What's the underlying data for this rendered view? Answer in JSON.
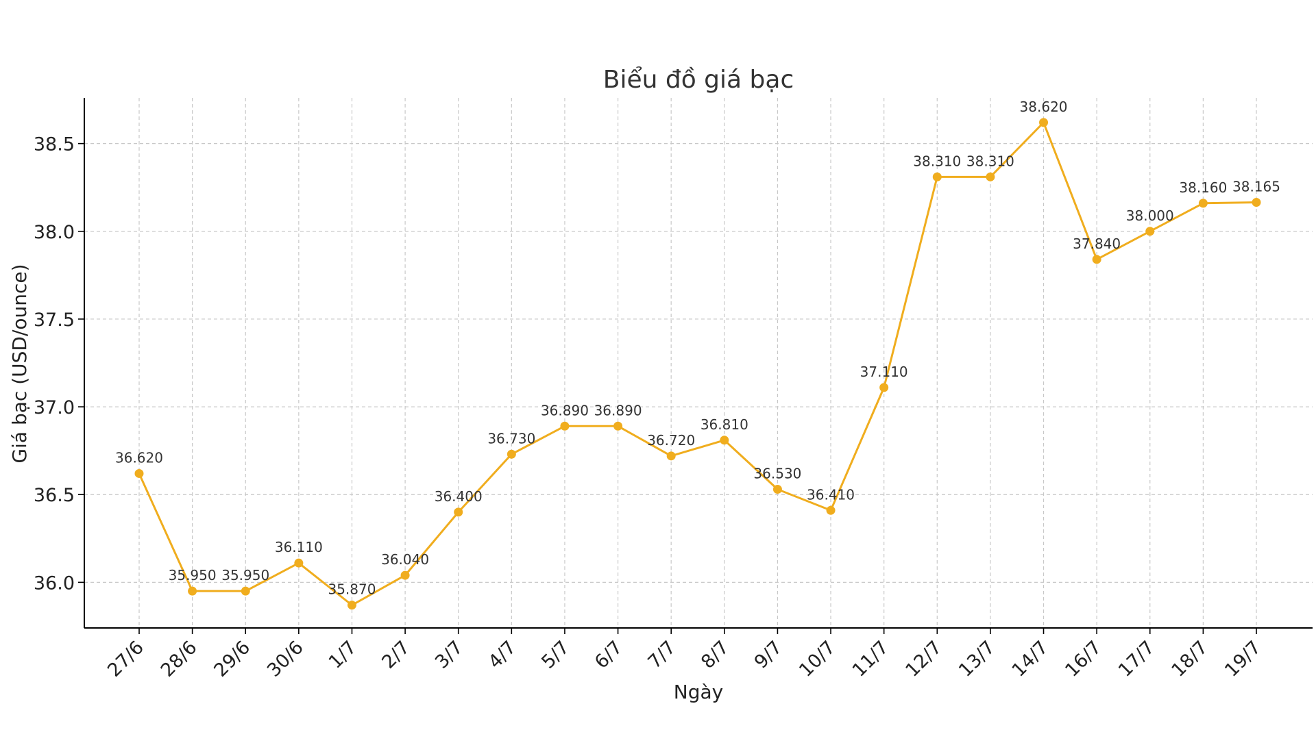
{
  "chart_data": {
    "type": "line",
    "title": "Biểu đồ giá bạc",
    "xlabel": "Ngày",
    "ylabel": "Giá bạc (USD/ounce)",
    "categories": [
      "27/6",
      "28/6",
      "29/6",
      "30/6",
      "1/7",
      "2/7",
      "3/7",
      "4/7",
      "5/7",
      "6/7",
      "7/7",
      "8/7",
      "9/7",
      "10/7",
      "11/7",
      "12/7",
      "13/7",
      "14/7",
      "16/7",
      "17/7",
      "18/7",
      "19/7"
    ],
    "values": [
      36.62,
      35.95,
      35.95,
      36.11,
      35.87,
      36.04,
      36.4,
      36.73,
      36.89,
      36.89,
      36.72,
      36.81,
      36.53,
      36.41,
      37.11,
      38.31,
      38.31,
      38.62,
      37.84,
      38.0,
      38.16,
      38.165
    ],
    "data_labels": [
      "36.620",
      "35.950",
      "35.950",
      "36.110",
      "35.870",
      "36.040",
      "36.400",
      "36.730",
      "36.890",
      "36.890",
      "36.720",
      "36.810",
      "36.530",
      "36.410",
      "37.110",
      "38.310",
      "38.310",
      "38.620",
      "37.840",
      "38.000",
      "38.160",
      "38.165"
    ],
    "yticks": [
      36.0,
      36.5,
      37.0,
      37.5,
      38.0,
      38.5
    ],
    "ytick_labels": [
      "36.0",
      "36.5",
      "37.0",
      "37.5",
      "38.0",
      "38.5"
    ],
    "ylim": [
      35.74,
      38.76
    ],
    "grid": true,
    "line_color": "#f0ad1e",
    "marker_color": "#f0ad1e"
  }
}
